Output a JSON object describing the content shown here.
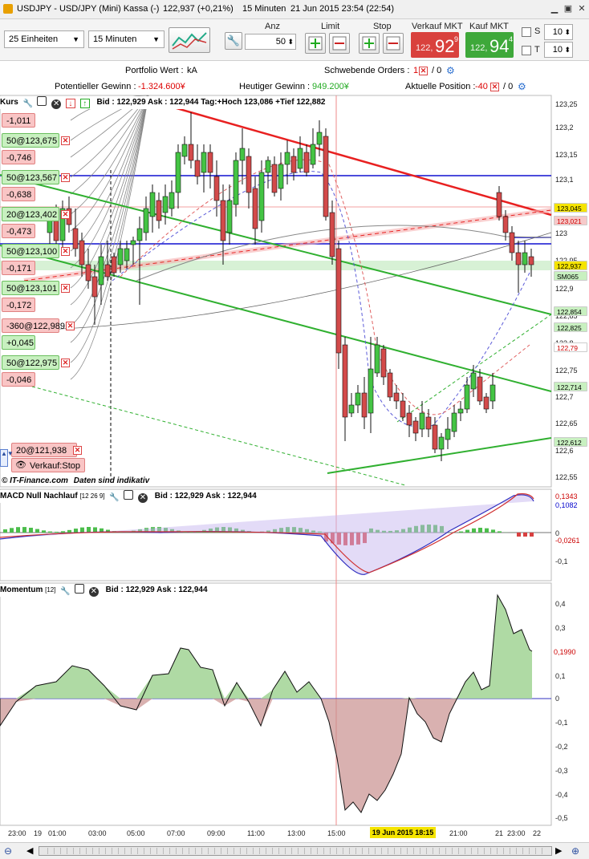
{
  "window": {
    "title": "USDJPY - USD/JPY (Mini) Kassa (-)",
    "price": "122,937 (+0,21%)",
    "interval": "15 Minuten",
    "datetime": "21 Jun 2015 23:54 (22:54)"
  },
  "toolbar": {
    "units_select": "25 Einheiten",
    "timeframe_select": "15 Minuten",
    "anz_label": "Anz",
    "anz_value": "50",
    "limit_label": "Limit",
    "stop_label": "Stop",
    "sell_label": "Verkauf MKT",
    "buy_label": "Kauf MKT",
    "sell_small": "122,",
    "sell_big": "92",
    "sell_sup": "9",
    "buy_small": "122,",
    "buy_big": "94",
    "buy_sup": "4",
    "s_label": "S",
    "t_label": "T",
    "s_value": "10",
    "t_value": "10"
  },
  "info": {
    "portfolio_label": "Portfolio Wert :",
    "portfolio_value": "kA",
    "pending_label": "Schwebende Orders :",
    "pending_value": "1",
    "pending_zero": "/ 0",
    "potential_label": "Potentieller Gewinn :",
    "potential_value": "-1.324.600¥",
    "today_label": "Heutiger Gewinn :",
    "today_value": "949.200¥",
    "position_label": "Aktuelle Position :",
    "position_value": "-40",
    "position_zero": "/ 0"
  },
  "main_pane": {
    "title": "Kurs",
    "quote": "Bid : 122,929 Ask : 122,944 Tag:+Hoch 123,086 +Tief 122,882",
    "watermark": "© IT-Finance.com",
    "watermark2": "Daten sind indikativ"
  },
  "orders": [
    {
      "label": "-1,011",
      "kind": "r"
    },
    {
      "label": "50@123,675",
      "kind": "g"
    },
    {
      "label": "-0,746",
      "kind": "r"
    },
    {
      "label": "50@123,567",
      "kind": "g"
    },
    {
      "label": "-0,638",
      "kind": "r"
    },
    {
      "label": "20@123,402",
      "kind": "g"
    },
    {
      "label": "-0,473",
      "kind": "r"
    },
    {
      "label": "50@123,100",
      "kind": "g"
    },
    {
      "label": "-0,171",
      "kind": "r"
    },
    {
      "label": "50@123,101",
      "kind": "g"
    },
    {
      "label": "-0,172",
      "kind": "r"
    },
    {
      "label": "-360@122,989",
      "kind": "r"
    },
    {
      "label": "+0,045",
      "kind": "g"
    },
    {
      "label": "50@122,975",
      "kind": "g"
    },
    {
      "label": "-0,046",
      "kind": "r"
    }
  ],
  "stop_order": {
    "label": "20@121,938",
    "action": "Verkauf:Stop"
  },
  "y_axis_main": [
    "123,25",
    "123,2",
    "123,15",
    "123,1",
    "123,05",
    "123",
    "122,95",
    "122,9",
    "122,85",
    "122,8",
    "122,75",
    "122,7",
    "122,65",
    "122,6",
    "122,55"
  ],
  "y_boxes_main": [
    {
      "label": "123,045",
      "color": "#f5e400"
    },
    {
      "label": "123,021",
      "color": "#f6c9c9"
    },
    {
      "label": "122,937",
      "color": "#f5e400"
    },
    {
      "label": "SM065",
      "color": "#c8f0c0"
    },
    {
      "label": "122,854",
      "color": "#c8f0c0"
    },
    {
      "label": "122,825",
      "color": "#c8f0c0"
    },
    {
      "label": "122,79",
      "color": "#ffffff"
    },
    {
      "label": "122,714",
      "color": "#c8f0c0"
    },
    {
      "label": "122,612",
      "color": "#c8f0c0"
    }
  ],
  "macd_pane": {
    "title": "MACD Null Nachlauf",
    "params": "[12 26 9]",
    "quote": "Bid : 122,929 Ask : 122,944",
    "y_axis": [
      "0",
      "-0,1"
    ],
    "val1": "0,1343",
    "val2": "0,1082",
    "val3": "-0,0261"
  },
  "momentum_pane": {
    "title": "Momentum",
    "params": "[12]",
    "quote": "Bid : 122,929 Ask : 122,944",
    "y_axis": [
      "0,4",
      "0,3",
      "0,2",
      "0,1",
      "0",
      "-0,1",
      "-0,2",
      "-0,3",
      "-0,4",
      "-0,5"
    ],
    "last_value": "0,1990"
  },
  "x_axis": [
    "23:00",
    "19",
    "01:00",
    "03:00",
    "05:00",
    "07:00",
    "09:00",
    "11:00",
    "13:00",
    "15:00",
    "18:15",
    "21:00",
    "21",
    "23:00",
    "22"
  ],
  "x_highlight": "19 Jun 2015",
  "colors": {
    "sell": "#d9413d",
    "buy": "#3ea83a",
    "bull_candle": "#44c444",
    "bear_candle": "#d34a4a",
    "trend_red": "#e82020",
    "trend_green": "#30b030",
    "hline_blue": "#1010d0"
  }
}
